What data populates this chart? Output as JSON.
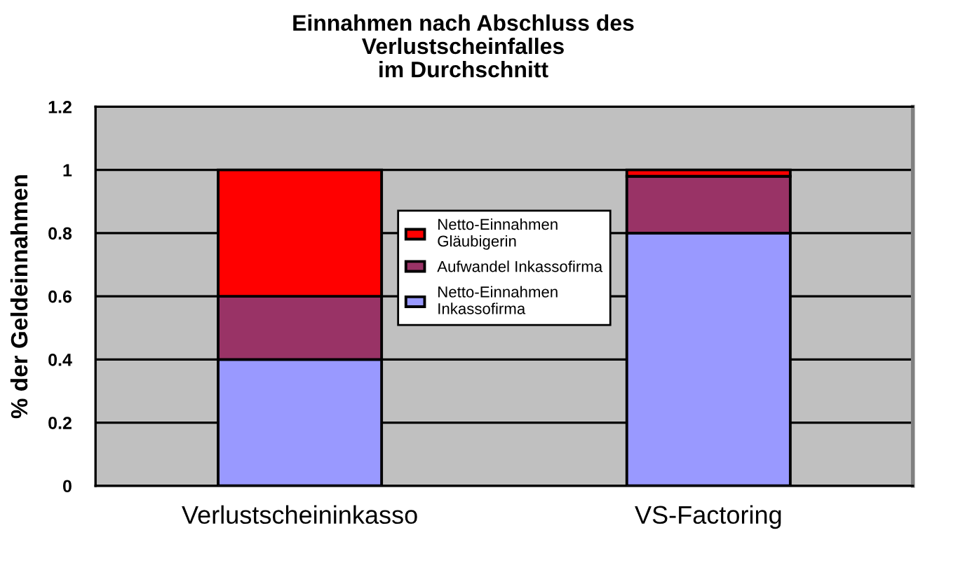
{
  "chart_data": {
    "type": "bar",
    "stacked": true,
    "title": "Einnahmen nach Abschluss des\nVerlustscheinfalles\nim Durchschnitt",
    "ylabel": "% der Geldeinnahmen",
    "categories": [
      "Verlustscheininkasso",
      "VS-Factoring"
    ],
    "series": [
      {
        "name": "Netto-Einnahmen\nInkassofirma",
        "color": "#9999ff",
        "values": [
          0.4,
          0.8
        ]
      },
      {
        "name": "Aufwandel Inkassofirma",
        "color": "#993366",
        "values": [
          0.2,
          0.18
        ]
      },
      {
        "name": "Netto-Einnahmen\nGläubigerin",
        "color": "#ff0000",
        "values": [
          0.4,
          0.02
        ]
      }
    ],
    "ylim": [
      0,
      1.2
    ],
    "yticks": [
      0,
      0.2,
      0.4,
      0.6,
      0.8,
      1,
      1.2
    ],
    "grid": "y",
    "legend": "center"
  }
}
